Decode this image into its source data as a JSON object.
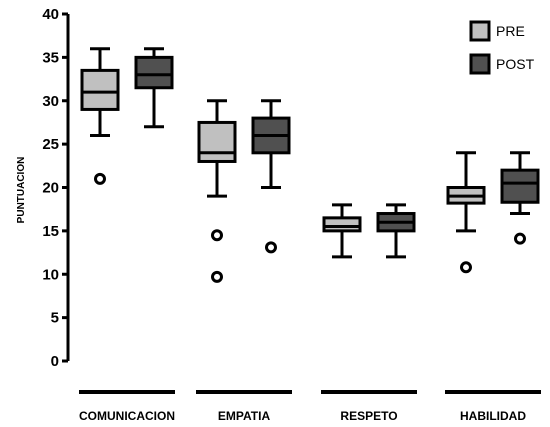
{
  "chart_data": {
    "type": "box",
    "ylabel": "PUNTUACION",
    "ylim": [
      0,
      40
    ],
    "yticks": [
      0,
      5,
      10,
      15,
      20,
      25,
      30,
      35,
      40
    ],
    "grid": false,
    "legend_position": "top-right",
    "categories": [
      "COMUNICACION",
      "EMPATIA",
      "RESPETO",
      "HABILIDAD"
    ],
    "series": [
      {
        "name": "PRE",
        "color": "#c0c0c0",
        "boxes": [
          {
            "whisker_low": 26,
            "q1": 29,
            "median": 31,
            "q3": 33.5,
            "whisker_high": 36,
            "outliers": [
              21
            ]
          },
          {
            "whisker_low": 19,
            "q1": 23,
            "median": 24,
            "q3": 27.5,
            "whisker_high": 30,
            "outliers": [
              14.5,
              9.7
            ]
          },
          {
            "whisker_low": 12,
            "q1": 15,
            "median": 15.5,
            "q3": 16.5,
            "whisker_high": 18,
            "outliers": []
          },
          {
            "whisker_low": 15,
            "q1": 18.2,
            "median": 19,
            "q3": 20,
            "whisker_high": 24,
            "outliers": [
              10.8
            ]
          }
        ]
      },
      {
        "name": "POST",
        "color": "#505050",
        "boxes": [
          {
            "whisker_low": 27,
            "q1": 31.5,
            "median": 33,
            "q3": 35,
            "whisker_high": 36,
            "outliers": []
          },
          {
            "whisker_low": 20,
            "q1": 24,
            "median": 26,
            "q3": 28,
            "whisker_high": 30,
            "outliers": [
              13.1
            ]
          },
          {
            "whisker_low": 12,
            "q1": 15,
            "median": 16,
            "q3": 17,
            "whisker_high": 18,
            "outliers": []
          },
          {
            "whisker_low": 17,
            "q1": 18.3,
            "median": 20.5,
            "q3": 22,
            "whisker_high": 24,
            "outliers": [
              14.1
            ]
          }
        ]
      }
    ]
  }
}
